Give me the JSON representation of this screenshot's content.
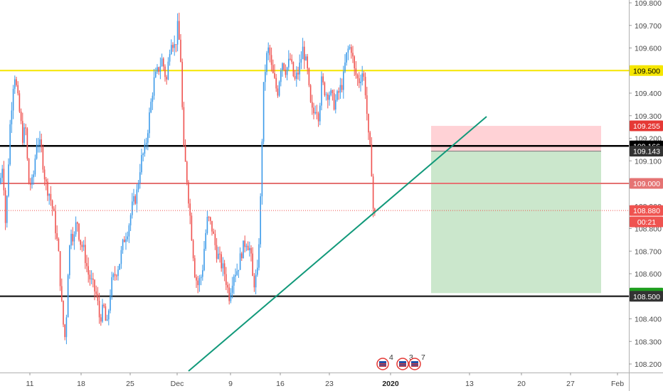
{
  "chart_data": {
    "type": "candlestick",
    "ylim": [
      108.15,
      109.82
    ],
    "grid": false,
    "y_ticks": [
      "109.800",
      "109.700",
      "109.600",
      "109.500",
      "109.400",
      "109.300",
      "109.200",
      "109.100",
      "109.000",
      "108.900",
      "108.800",
      "108.700",
      "108.600",
      "108.500",
      "108.400",
      "108.300",
      "108.200"
    ],
    "x_ticks": [
      "11",
      "18",
      "25",
      "Dec",
      "2",
      "9",
      "16",
      "23",
      "2020",
      "13",
      "20",
      "27",
      "Feb"
    ],
    "x_bold_ticks": [
      "2020"
    ],
    "horizontal_lines": [
      {
        "price": 109.5,
        "color": "#f5e600"
      },
      {
        "price": 109.166,
        "color": "#000000"
      },
      {
        "price": 109.0,
        "color": "#e57373"
      },
      {
        "price": 108.5,
        "color": "#333333"
      }
    ],
    "current_price": 108.88,
    "price_labels": [
      {
        "text": "109.500",
        "price": 109.5,
        "bg": "#f5e600",
        "fg": "#000000"
      },
      {
        "text": "109.255",
        "price": 109.255,
        "bg": "#e53935",
        "fg": "#ffffff"
      },
      {
        "text": "109.166",
        "price": 109.166,
        "bg": "#000000",
        "fg": "#ffffff"
      },
      {
        "text": "109.143",
        "price": 109.143,
        "bg": "#333333",
        "fg": "#ffffff"
      },
      {
        "text": "109.000",
        "price": 109.0,
        "bg": "#e57373",
        "fg": "#ffffff"
      },
      {
        "text": "108.880",
        "price": 108.88,
        "bg": "#ef5350",
        "fg": "#ffffff"
      },
      {
        "text": "00:21",
        "price": 108.845,
        "bg": "#ef5350",
        "fg": "#ffffff"
      },
      {
        "text": "108.514",
        "price": 108.514,
        "bg": "#1e9e1e",
        "fg": "#ffffff"
      },
      {
        "text": "108.500",
        "price": 108.5,
        "bg": "#333333",
        "fg": "#ffffff"
      }
    ],
    "position": {
      "stop_loss": 109.255,
      "entry": 109.143,
      "take_profit": 108.514,
      "stop_color": "#ffcdd2",
      "target_color": "#c8e6c9"
    },
    "trendline_color": "#11997a",
    "up_color": "#3d9be9",
    "down_color": "#ef5350",
    "event_icons": [
      {
        "name": "us-flag-icon",
        "count": "4"
      },
      {
        "name": "us-flag-icon",
        "count": "3"
      },
      {
        "name": "us-flag-icon",
        "count": "7"
      }
    ],
    "path_points": [
      [
        0,
        109.0
      ],
      [
        4,
        109.1
      ],
      [
        8,
        108.8
      ],
      [
        14,
        109.25
      ],
      [
        20,
        109.5
      ],
      [
        26,
        109.35
      ],
      [
        32,
        109.2
      ],
      [
        36,
        109.25
      ],
      [
        40,
        109.0
      ],
      [
        46,
        109.0
      ],
      [
        52,
        109.2
      ],
      [
        58,
        109.15
      ],
      [
        64,
        109.0
      ],
      [
        70,
        108.95
      ],
      [
        76,
        108.85
      ],
      [
        82,
        108.7
      ],
      [
        88,
        108.4
      ],
      [
        92,
        108.3
      ],
      [
        96,
        108.65
      ],
      [
        100,
        108.8
      ],
      [
        104,
        108.75
      ],
      [
        108,
        108.85
      ],
      [
        112,
        108.75
      ],
      [
        118,
        108.7
      ],
      [
        124,
        108.6
      ],
      [
        130,
        108.55
      ],
      [
        136,
        108.5
      ],
      [
        140,
        108.4
      ],
      [
        146,
        108.45
      ],
      [
        150,
        108.35
      ],
      [
        156,
        108.55
      ],
      [
        162,
        108.6
      ],
      [
        168,
        108.65
      ],
      [
        174,
        108.75
      ],
      [
        180,
        108.8
      ],
      [
        186,
        108.9
      ],
      [
        192,
        108.95
      ],
      [
        198,
        109.1
      ],
      [
        204,
        109.15
      ],
      [
        210,
        109.3
      ],
      [
        216,
        109.45
      ],
      [
        222,
        109.5
      ],
      [
        228,
        109.55
      ],
      [
        234,
        109.45
      ],
      [
        240,
        109.65
      ],
      [
        246,
        109.6
      ],
      [
        250,
        109.7
      ],
      [
        254,
        109.55
      ],
      [
        258,
        109.15
      ],
      [
        262,
        109.05
      ],
      [
        266,
        108.9
      ],
      [
        270,
        108.75
      ],
      [
        274,
        108.6
      ],
      [
        278,
        108.55
      ],
      [
        284,
        108.6
      ],
      [
        288,
        108.75
      ],
      [
        292,
        108.85
      ],
      [
        298,
        108.8
      ],
      [
        304,
        108.7
      ],
      [
        310,
        108.65
      ],
      [
        316,
        108.6
      ],
      [
        322,
        108.5
      ],
      [
        328,
        108.6
      ],
      [
        334,
        108.62
      ],
      [
        340,
        108.7
      ],
      [
        346,
        108.75
      ],
      [
        352,
        108.7
      ],
      [
        356,
        108.55
      ],
      [
        362,
        108.6
      ],
      [
        366,
        108.9
      ],
      [
        370,
        109.4
      ],
      [
        374,
        109.55
      ],
      [
        378,
        109.6
      ],
      [
        382,
        109.5
      ],
      [
        386,
        109.45
      ],
      [
        390,
        109.4
      ],
      [
        396,
        109.55
      ],
      [
        402,
        109.5
      ],
      [
        408,
        109.55
      ],
      [
        414,
        109.45
      ],
      [
        420,
        109.5
      ],
      [
        426,
        109.6
      ],
      [
        432,
        109.5
      ],
      [
        436,
        109.35
      ],
      [
        440,
        109.3
      ],
      [
        444,
        109.35
      ],
      [
        448,
        109.3
      ],
      [
        452,
        109.45
      ],
      [
        458,
        109.4
      ],
      [
        464,
        109.4
      ],
      [
        470,
        109.35
      ],
      [
        476,
        109.4
      ],
      [
        482,
        109.45
      ],
      [
        486,
        109.55
      ],
      [
        490,
        109.6
      ],
      [
        494,
        109.6
      ],
      [
        498,
        109.5
      ],
      [
        504,
        109.45
      ],
      [
        510,
        109.5
      ],
      [
        514,
        109.4
      ],
      [
        518,
        109.2
      ],
      [
        522,
        109.1
      ],
      [
        524,
        108.9
      ],
      [
        527,
        108.85
      ]
    ]
  }
}
